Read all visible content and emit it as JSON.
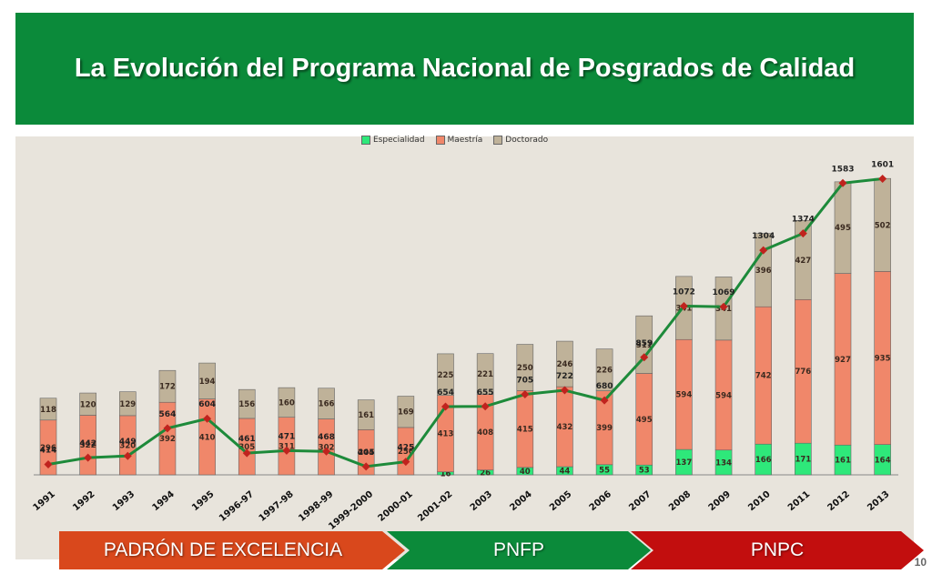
{
  "title": "La Evolución del Programa Nacional de Posgrados de Calidad",
  "chart_data": {
    "type": "bar",
    "stacked": true,
    "categories": [
      "1991",
      "1992",
      "1993",
      "1994",
      "1995",
      "1996-97",
      "1997-98",
      "1998-99",
      "1999-2000",
      "2000-01",
      "2001-02",
      "2003",
      "2004",
      "2005",
      "2006",
      "2007",
      "2008",
      "2009",
      "2010",
      "2011",
      "2012",
      "2013"
    ],
    "series": [
      {
        "name": "Especialidad",
        "color": "#2ee87a",
        "values": [
          0,
          0,
          0,
          0,
          0,
          0,
          0,
          0,
          0,
          0,
          16,
          26,
          40,
          44,
          55,
          53,
          137,
          134,
          166,
          171,
          161,
          164
        ],
        "labels": [
          "",
          "",
          "",
          "",
          "",
          "",
          "",
          "",
          "",
          "",
          "16",
          "26",
          "40",
          "44",
          "55",
          "53",
          "137",
          "134",
          "166",
          "171",
          "161",
          "164"
        ]
      },
      {
        "name": "Maestría",
        "color": "#f0876a",
        "values": [
          296,
          322,
          320,
          392,
          410,
          305,
          311,
          302,
          244,
          256,
          413,
          408,
          415,
          432,
          399,
          495,
          594,
          594,
          742,
          776,
          927,
          935
        ]
      },
      {
        "name": "Doctorado",
        "color": "#bfb299",
        "values": [
          118,
          120,
          129,
          172,
          194,
          156,
          160,
          166,
          161,
          169,
          225,
          221,
          250,
          246,
          226,
          311,
          341,
          341,
          396,
          427,
          495,
          502
        ]
      }
    ],
    "totals": {
      "name": "Total",
      "type": "line",
      "color": "#1d8a3a",
      "marker_color": "#c0231e",
      "values": [
        414,
        442,
        449,
        564,
        604,
        461,
        471,
        468,
        405,
        425,
        654,
        655,
        705,
        722,
        680,
        859,
        1072,
        1069,
        1304,
        1374,
        1583,
        1601
      ]
    },
    "legend_position": "top",
    "grid": false
  },
  "footer": {
    "stages": [
      {
        "label": "PADRÓN DE EXCELENCIA",
        "color": "#d9481c"
      },
      {
        "label": "PNFP",
        "color": "#0b8a3a"
      },
      {
        "label": "PNPC",
        "color": "#c20e0e"
      }
    ]
  },
  "page_number": "10"
}
